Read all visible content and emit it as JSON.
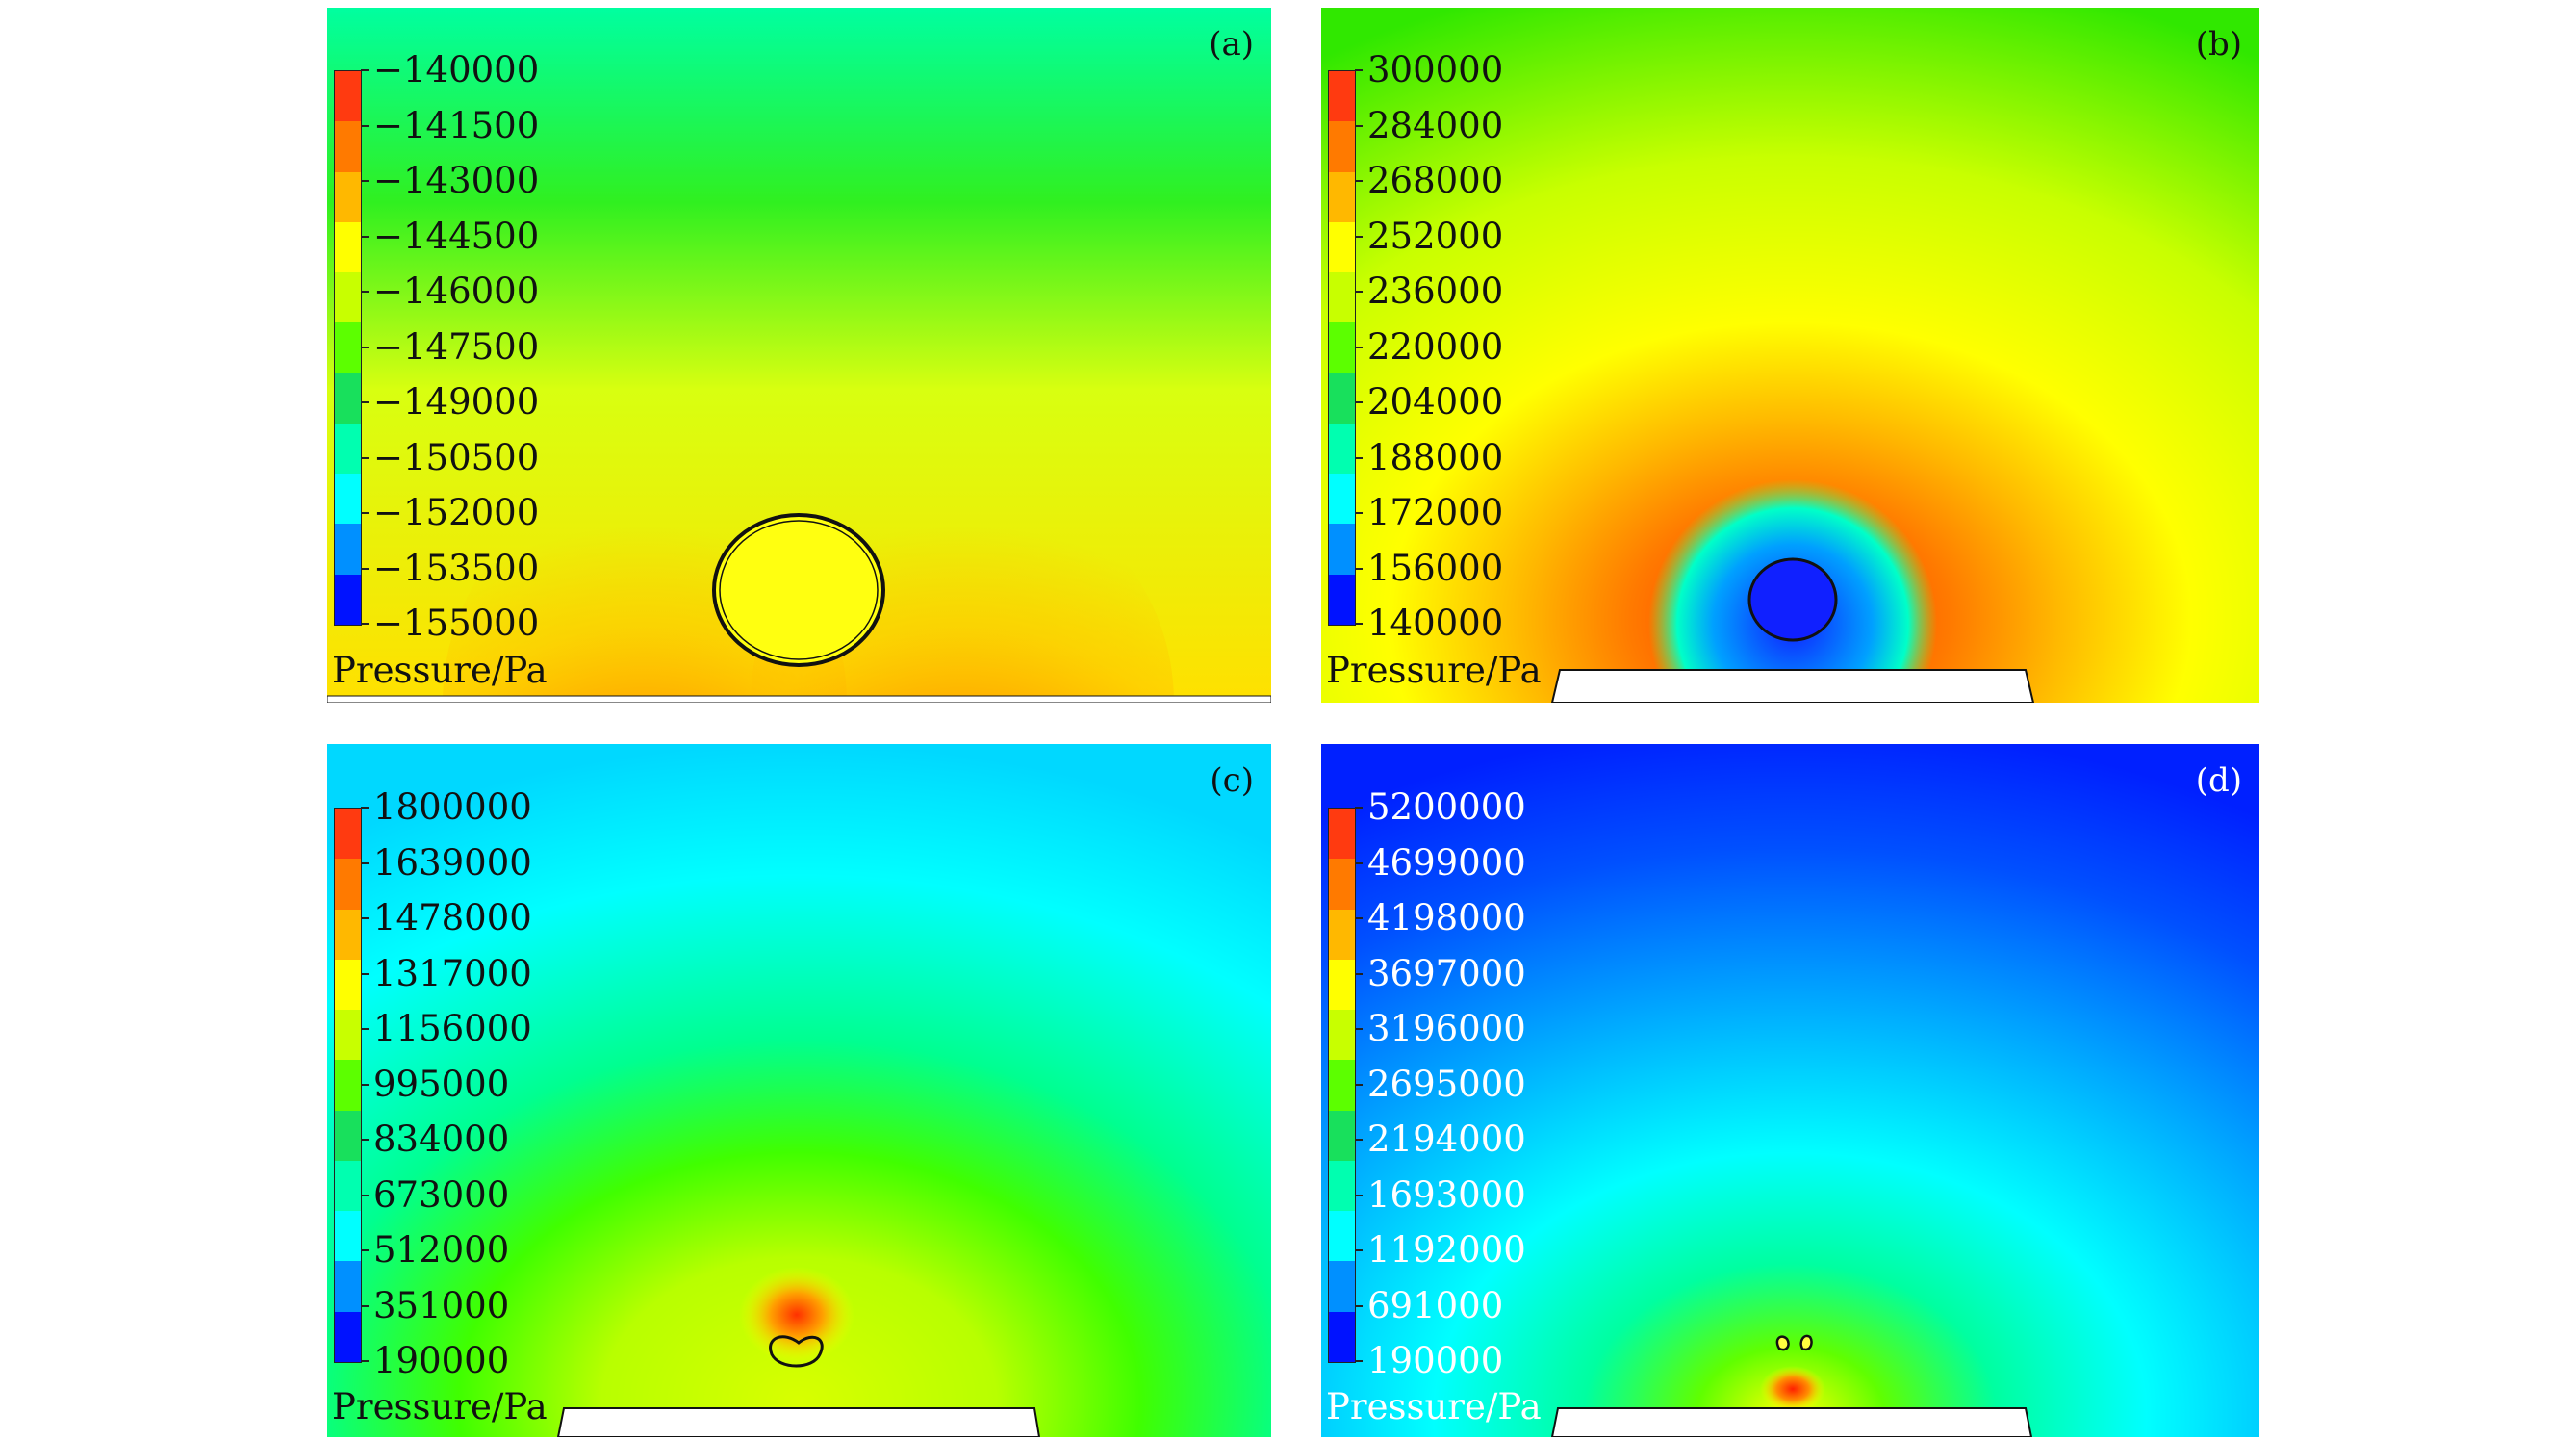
{
  "figure": {
    "quantity_label": "Pressure/Pa",
    "panels": [
      {
        "id": "a",
        "label": "(a)",
        "colorbar": {
          "ticks": [
            "−140000",
            "−141500",
            "−143000",
            "−144500",
            "−146000",
            "−147500",
            "−149000",
            "−150500",
            "−152000",
            "−153500",
            "−155000"
          ],
          "max": -140000,
          "min": -155000
        }
      },
      {
        "id": "b",
        "label": "(b)",
        "colorbar": {
          "ticks": [
            "300000",
            "284000",
            "268000",
            "252000",
            "236000",
            "220000",
            "204000",
            "188000",
            "172000",
            "156000",
            "140000"
          ],
          "max": 300000,
          "min": 140000
        }
      },
      {
        "id": "c",
        "label": "(c)",
        "colorbar": {
          "ticks": [
            "1800000",
            "1639000",
            "1478000",
            "1317000",
            "1156000",
            "995000",
            "834000",
            "673000",
            "512000",
            "351000",
            "190000"
          ],
          "max": 1800000,
          "min": 190000
        }
      },
      {
        "id": "d",
        "label": "(d)",
        "colorbar": {
          "ticks": [
            "5200000",
            "4699000",
            "4198000",
            "3697000",
            "3196000",
            "2695000",
            "2194000",
            "1693000",
            "1192000",
            "691000",
            "190000"
          ],
          "max": 5200000,
          "min": 190000
        }
      }
    ],
    "colormap": [
      "#ff3a10",
      "#ff7a00",
      "#ffb800",
      "#ffff00",
      "#c8ff00",
      "#5cff00",
      "#18e05c",
      "#00ffb0",
      "#00ffff",
      "#0090ff",
      "#0012ff"
    ]
  }
}
